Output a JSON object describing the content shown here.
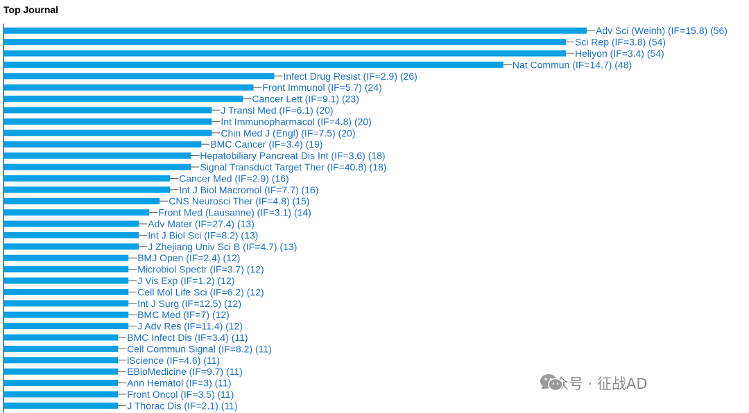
{
  "title": "Top Journal",
  "watermark": "公众号 · 征战AD",
  "colors": {
    "bar": "#0aa0e3",
    "label": "#1a6fc9",
    "axis": "#000000"
  },
  "chart_data": {
    "type": "bar",
    "orientation": "horizontal",
    "title": "Top Journal",
    "xlim": [
      0,
      56
    ],
    "grid": false,
    "categories": [
      "Adv Sci (Weinh) (IF=15.8) (56)",
      "Sci Rep (IF=3.8) (54)",
      "Heliyon (IF=3.4) (54)",
      "Nat Commun (IF=14.7) (48)",
      "Infect Drug Resist (IF=2.9) (26)",
      "Front Immunol (IF=5.7) (24)",
      "Cancer Lett (IF=9.1) (23)",
      "J Transl Med (IF=6.1) (20)",
      "Int Immunopharmacol (IF=4.8) (20)",
      "Chin Med J (Engl) (IF=7.5) (20)",
      "BMC Cancer (IF=3.4) (19)",
      "Hepatobiliary Pancreat Dis Int (IF=3.6) (18)",
      "Signal Transduct Target Ther (IF=40.8) (18)",
      "Cancer Med (IF=2.9) (16)",
      "Int J Biol Macromol (IF=7.7) (16)",
      "CNS Neurosci Ther (IF=4.8) (15)",
      "Front Med (Lausanne) (IF=3.1) (14)",
      "Adv Mater (IF=27.4) (13)",
      "Int J Biol Sci (IF=8.2) (13)",
      "J Zhejiang Univ Sci B (IF=4.7) (13)",
      "BMJ Open (IF=2.4) (12)",
      "Microbiol Spectr (IF=3.7) (12)",
      "J Vis Exp (IF=1.2) (12)",
      "Cell Mol Life Sci (IF=6.2) (12)",
      "Int J Surg (IF=12.5) (12)",
      "BMC Med (IF=7) (12)",
      "J Adv Res (IF=11.4) (12)",
      "BMC Infect Dis (IF=3.4) (11)",
      "Cell Commun Signal (IF=8.2) (11)",
      "iScience (IF=4.6) (11)",
      "EBioMedicine (IF=9.7) (11)",
      "Ann Hematol (IF=3) (11)",
      "Front Oncol (IF=3.5) (11)",
      "J Thorac Dis (IF=2.1) (11)"
    ],
    "values": [
      56,
      54,
      54,
      48,
      26,
      24,
      23,
      20,
      20,
      20,
      19,
      18,
      18,
      16,
      16,
      15,
      14,
      13,
      13,
      13,
      12,
      12,
      12,
      12,
      12,
      12,
      12,
      11,
      11,
      11,
      11,
      11,
      11,
      11
    ]
  }
}
